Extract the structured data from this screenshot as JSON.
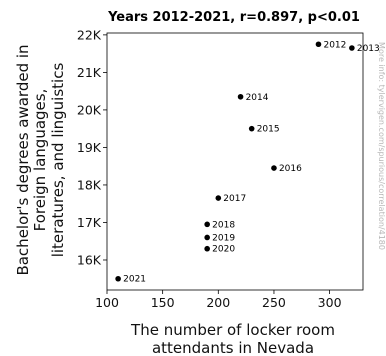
{
  "chart_data": {
    "type": "scatter",
    "title": "Years 2012-2021, r=0.897, p<0.01",
    "xlabel": [
      "The number of locker room",
      "attendants in Nevada"
    ],
    "ylabel": [
      "Bachelor's degrees awarded in",
      "Foreign languages,",
      "literatures, and linguistics"
    ],
    "xlim": [
      100,
      330
    ],
    "ylim": [
      15200,
      22050
    ],
    "xticks": [
      100,
      150,
      200,
      250,
      300
    ],
    "yticks": [
      16000,
      17000,
      18000,
      19000,
      20000,
      21000,
      22000
    ],
    "ytick_labels": [
      "16K",
      "17K",
      "18K",
      "19K",
      "20K",
      "21K",
      "22K"
    ],
    "grid": false,
    "watermark": "More info: tylervigen.com/spurious/correlation/4180",
    "points": [
      {
        "label": "2012",
        "x": 290,
        "y": 21750
      },
      {
        "label": "2013",
        "x": 320,
        "y": 21650
      },
      {
        "label": "2014",
        "x": 220,
        "y": 20350
      },
      {
        "label": "2015",
        "x": 230,
        "y": 19500
      },
      {
        "label": "2016",
        "x": 250,
        "y": 18450
      },
      {
        "label": "2017",
        "x": 200,
        "y": 17650
      },
      {
        "label": "2018",
        "x": 190,
        "y": 16950
      },
      {
        "label": "2019",
        "x": 190,
        "y": 16600
      },
      {
        "label": "2020",
        "x": 190,
        "y": 16300
      },
      {
        "label": "2021",
        "x": 110,
        "y": 15500
      }
    ]
  }
}
